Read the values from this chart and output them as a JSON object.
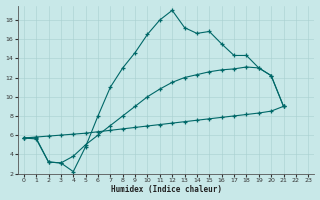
{
  "xlabel": "Humidex (Indice chaleur)",
  "background_color": "#c8e8e8",
  "line_color": "#006868",
  "xlim": [
    -0.5,
    23.5
  ],
  "ylim": [
    2,
    19.5
  ],
  "yticks": [
    2,
    4,
    6,
    8,
    10,
    12,
    14,
    16,
    18
  ],
  "xticks": [
    0,
    1,
    2,
    3,
    4,
    5,
    6,
    7,
    8,
    9,
    10,
    11,
    12,
    13,
    14,
    15,
    16,
    17,
    18,
    19,
    20,
    21,
    22,
    23
  ],
  "line1_x": [
    0,
    1,
    2,
    3,
    4,
    5,
    6,
    7,
    8,
    9,
    10,
    11,
    12,
    13,
    14,
    15,
    16,
    17,
    18,
    19,
    20,
    21
  ],
  "line1_y": [
    5.7,
    5.6,
    3.2,
    3.1,
    2.2,
    4.8,
    8.0,
    11.0,
    13.0,
    14.6,
    16.5,
    18.0,
    19.0,
    17.2,
    16.6,
    16.8,
    15.5,
    14.3,
    14.3,
    13.0,
    12.2,
    9.0
  ],
  "line2_x": [
    0,
    1,
    2,
    3,
    4,
    5,
    6,
    7,
    8,
    9,
    10,
    11,
    12,
    13,
    14,
    15,
    16,
    17,
    18,
    19,
    20,
    21
  ],
  "line2_y": [
    5.7,
    5.8,
    5.9,
    6.0,
    6.1,
    6.2,
    6.35,
    6.5,
    6.65,
    6.8,
    6.95,
    7.1,
    7.25,
    7.4,
    7.55,
    7.7,
    7.85,
    8.0,
    8.15,
    8.3,
    8.5,
    9.0
  ],
  "line3_x": [
    0,
    1,
    2,
    3,
    4,
    5,
    6,
    7,
    8,
    9,
    10,
    11,
    12,
    13,
    14,
    15,
    16,
    17,
    18,
    19,
    20,
    21
  ],
  "line3_y": [
    5.7,
    5.7,
    3.2,
    3.1,
    3.8,
    5.0,
    6.0,
    7.0,
    8.0,
    9.0,
    10.0,
    10.8,
    11.5,
    12.0,
    12.3,
    12.6,
    12.8,
    12.9,
    13.1,
    13.0,
    12.2,
    9.0
  ]
}
